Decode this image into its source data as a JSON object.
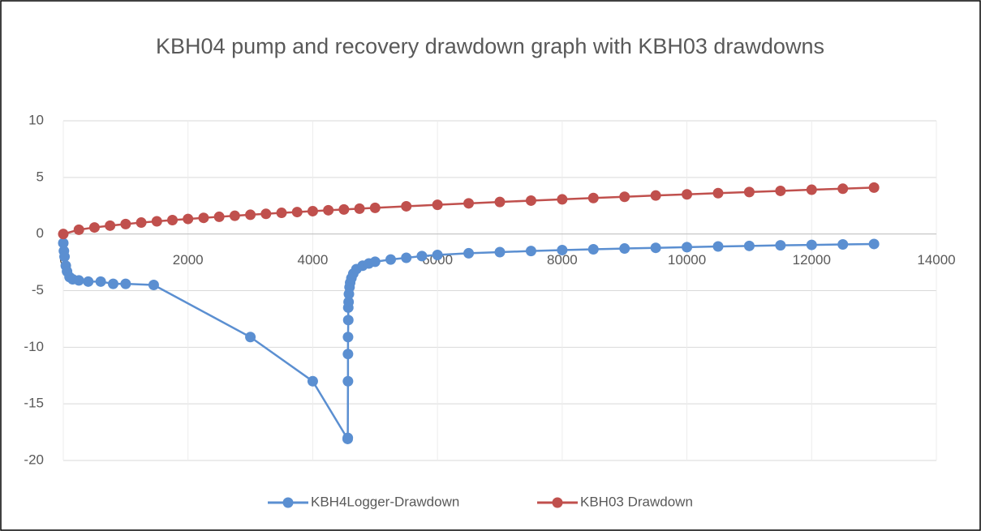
{
  "chart_data": {
    "type": "scatter",
    "title": "KBH04 pump and recovery drawdown graph with KBH03 drawdowns",
    "xlim": [
      0,
      14000
    ],
    "xticks": [
      0,
      2000,
      4000,
      6000,
      8000,
      10000,
      12000,
      14000
    ],
    "ylim": [
      -20,
      10
    ],
    "yticks": [
      -20,
      -15,
      -10,
      -5,
      0,
      5,
      10
    ],
    "grid": true,
    "legend": "bottom",
    "series": [
      {
        "name": "KBH4Logger-Drawdown",
        "color": "#5b8fd1",
        "x": [
          0,
          10,
          20,
          40,
          60,
          100,
          150,
          250,
          400,
          600,
          800,
          1000,
          1450,
          3000,
          4000,
          4560,
          4562,
          4565,
          4565,
          4566,
          4570,
          4570,
          4575,
          4580,
          4590,
          4600,
          4620,
          4650,
          4700,
          4800,
          4900,
          5000,
          5250,
          5500,
          5750,
          6000,
          6500,
          7000,
          7500,
          8000,
          8500,
          9000,
          9500,
          10000,
          10500,
          11000,
          11500,
          12000,
          12500,
          13000
        ],
        "values": [
          -0.8,
          -1.5,
          -2,
          -2.8,
          -3.3,
          -3.8,
          -4.0,
          -4.1,
          -4.2,
          -4.2,
          -4.4,
          -4.4,
          -4.5,
          -9.1,
          -13,
          -18.1,
          -18,
          -13,
          -10.6,
          -9.1,
          -7.6,
          -6.5,
          -6.0,
          -5.3,
          -4.7,
          -4.3,
          -3.9,
          -3.5,
          -3.1,
          -2.8,
          -2.6,
          -2.45,
          -2.25,
          -2.1,
          -1.95,
          -1.85,
          -1.7,
          -1.6,
          -1.5,
          -1.42,
          -1.35,
          -1.28,
          -1.22,
          -1.16,
          -1.1,
          -1.05,
          -1.0,
          -0.96,
          -0.92,
          -0.88
        ]
      },
      {
        "name": "KBH03 Drawdown",
        "color": "#c0504d",
        "x": [
          0,
          250,
          500,
          750,
          1000,
          1250,
          1500,
          1750,
          2000,
          2250,
          2500,
          2750,
          3000,
          3250,
          3500,
          3750,
          4000,
          4250,
          4500,
          4750,
          5000,
          5500,
          6000,
          6500,
          7000,
          7500,
          8000,
          8500,
          9000,
          9500,
          10000,
          10500,
          11000,
          11500,
          12000,
          12500,
          13000
        ],
        "values": [
          0,
          0.38,
          0.58,
          0.74,
          0.88,
          1.01,
          1.12,
          1.23,
          1.33,
          1.43,
          1.52,
          1.61,
          1.7,
          1.78,
          1.87,
          1.94,
          2.02,
          2.1,
          2.17,
          2.24,
          2.31,
          2.45,
          2.58,
          2.71,
          2.83,
          2.95,
          3.06,
          3.18,
          3.29,
          3.4,
          3.5,
          3.61,
          3.71,
          3.81,
          3.91,
          4.0,
          4.1
        ]
      }
    ]
  }
}
